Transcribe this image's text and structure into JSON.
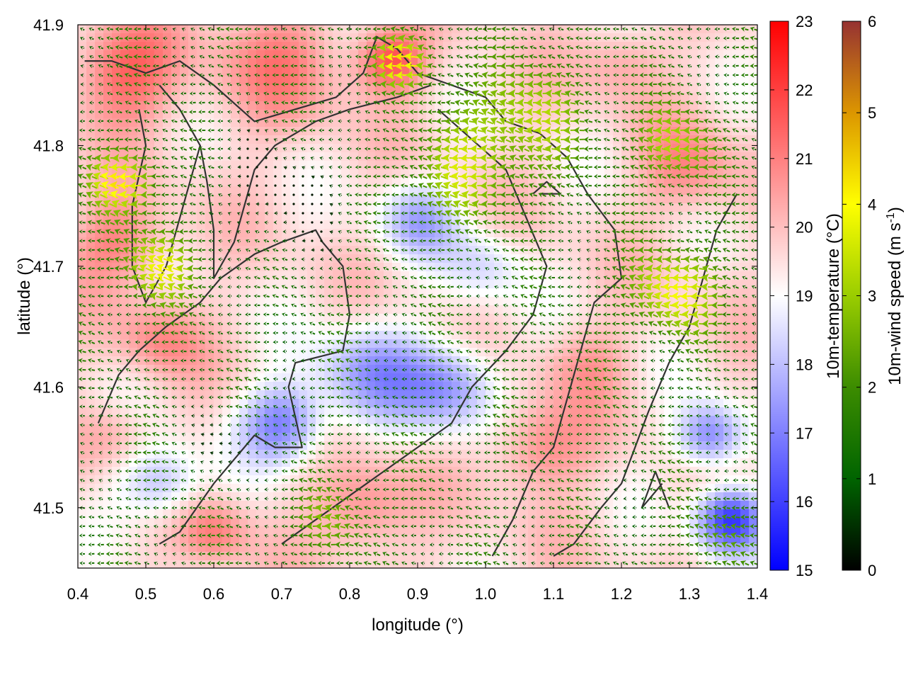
{
  "chart_data": {
    "type": "heatmap",
    "subtype": "temperature field with wind vector overlay",
    "xlabel": "longitude (°)",
    "ylabel": "latitude (°)",
    "xlim": [
      0.4,
      1.4
    ],
    "ylim": [
      41.45,
      41.9
    ],
    "x_ticks": [
      "0.4",
      "0.5",
      "0.6",
      "0.7",
      "0.8",
      "0.9",
      "1.0",
      "1.1",
      "1.2",
      "1.3",
      "1.4"
    ],
    "y_ticks": [
      "41.5",
      "41.6",
      "41.7",
      "41.8",
      "41.9"
    ],
    "grid": false,
    "temperature_colorbar": {
      "label": "10m-temperature (°C)",
      "range": [
        15,
        23
      ],
      "ticks": [
        "15",
        "16",
        "17",
        "18",
        "19",
        "20",
        "21",
        "22",
        "23"
      ],
      "colors": [
        "#0000ff",
        "#ffffff",
        "#ff0000"
      ]
    },
    "wind_colorbar": {
      "label_main": "10m-wind speed (m s",
      "label_sup": "-1",
      "label_end": ")",
      "range": [
        0,
        6
      ],
      "ticks": [
        "0",
        "1",
        "2",
        "3",
        "4",
        "5",
        "6"
      ],
      "colors": [
        "#000000",
        "#006400",
        "#3c8c00",
        "#9acd00",
        "#ffff00",
        "#dc9600",
        "#963232"
      ]
    },
    "temperature_anomalies": [
      {
        "lon": 0.47,
        "lat": 41.86,
        "value": 21.5,
        "radius": 0.08
      },
      {
        "lon": 0.46,
        "lat": 41.72,
        "value": 21.0,
        "radius": 0.07
      },
      {
        "lon": 0.52,
        "lat": 41.64,
        "value": 20.8,
        "radius": 0.06
      },
      {
        "lon": 0.7,
        "lat": 41.87,
        "value": 20.8,
        "radius": 0.1
      },
      {
        "lon": 0.86,
        "lat": 41.87,
        "value": 21.8,
        "radius": 0.05
      },
      {
        "lon": 1.2,
        "lat": 41.87,
        "value": 20.5,
        "radius": 0.06
      },
      {
        "lon": 1.3,
        "lat": 41.78,
        "value": 20.8,
        "radius": 0.07
      },
      {
        "lon": 1.15,
        "lat": 41.62,
        "value": 20.5,
        "radius": 0.06
      },
      {
        "lon": 1.08,
        "lat": 41.55,
        "value": 21.0,
        "radius": 0.07
      },
      {
        "lon": 0.6,
        "lat": 41.48,
        "value": 21.0,
        "radius": 0.05
      },
      {
        "lon": 0.82,
        "lat": 41.5,
        "value": 21.0,
        "radius": 0.07
      },
      {
        "lon": 0.45,
        "lat": 41.56,
        "value": 20.5,
        "radius": 0.05
      },
      {
        "lon": 0.9,
        "lat": 41.74,
        "value": 17.8,
        "radius": 0.06
      },
      {
        "lon": 0.83,
        "lat": 41.61,
        "value": 17.5,
        "radius": 0.08
      },
      {
        "lon": 0.7,
        "lat": 41.57,
        "value": 17.0,
        "radius": 0.06
      },
      {
        "lon": 0.52,
        "lat": 41.52,
        "value": 17.8,
        "radius": 0.06
      },
      {
        "lon": 0.95,
        "lat": 41.6,
        "value": 17.5,
        "radius": 0.07
      },
      {
        "lon": 1.36,
        "lat": 41.49,
        "value": 15.8,
        "radius": 0.05
      },
      {
        "lon": 1.33,
        "lat": 41.56,
        "value": 17.0,
        "radius": 0.05
      },
      {
        "lon": 1.0,
        "lat": 41.7,
        "value": 18.5,
        "radius": 0.06
      }
    ],
    "contour_lines": [
      [
        [
          0.43,
          41.57
        ],
        [
          0.46,
          41.61
        ],
        [
          0.49,
          41.63
        ],
        [
          0.53,
          41.65
        ],
        [
          0.58,
          41.67
        ],
        [
          0.61,
          41.69
        ],
        [
          0.66,
          41.71
        ],
        [
          0.7,
          41.72
        ],
        [
          0.75,
          41.73
        ],
        [
          0.76,
          41.72
        ],
        [
          0.79,
          41.7
        ],
        [
          0.8,
          41.66
        ],
        [
          0.79,
          41.63
        ],
        [
          0.72,
          41.62
        ],
        [
          0.71,
          41.6
        ],
        [
          0.73,
          41.55
        ],
        [
          0.69,
          41.55
        ],
        [
          0.66,
          41.56
        ],
        [
          0.6,
          41.52
        ],
        [
          0.55,
          41.48
        ],
        [
          0.52,
          41.47
        ]
      ],
      [
        [
          0.41,
          41.87
        ],
        [
          0.45,
          41.87
        ],
        [
          0.5,
          41.86
        ],
        [
          0.55,
          41.87
        ],
        [
          0.6,
          41.85
        ],
        [
          0.66,
          41.82
        ],
        [
          0.72,
          41.83
        ],
        [
          0.78,
          41.84
        ],
        [
          0.82,
          41.86
        ],
        [
          0.84,
          41.89
        ],
        [
          0.87,
          41.88
        ],
        [
          0.9,
          41.86
        ],
        [
          0.95,
          41.85
        ],
        [
          1.0,
          41.84
        ],
        [
          1.03,
          41.82
        ],
        [
          1.08,
          41.81
        ],
        [
          1.12,
          41.79
        ],
        [
          1.15,
          41.76
        ],
        [
          1.19,
          41.73
        ],
        [
          1.2,
          41.69
        ],
        [
          1.16,
          41.67
        ],
        [
          1.14,
          41.63
        ],
        [
          1.12,
          41.59
        ],
        [
          1.1,
          41.55
        ],
        [
          1.07,
          41.53
        ],
        [
          1.04,
          41.49
        ],
        [
          1.01,
          41.46
        ]
      ],
      [
        [
          0.58,
          41.8
        ],
        [
          0.59,
          41.77
        ],
        [
          0.6,
          41.73
        ],
        [
          0.6,
          41.69
        ],
        [
          0.63,
          41.72
        ],
        [
          0.66,
          41.78
        ],
        [
          0.69,
          41.8
        ],
        [
          0.75,
          41.82
        ],
        [
          0.8,
          41.83
        ],
        [
          0.87,
          41.84
        ],
        [
          0.92,
          41.85
        ]
      ],
      [
        [
          0.93,
          41.83
        ],
        [
          0.97,
          41.81
        ],
        [
          1.03,
          41.78
        ],
        [
          1.06,
          41.74
        ],
        [
          1.09,
          41.7
        ],
        [
          1.07,
          41.66
        ],
        [
          1.03,
          41.63
        ],
        [
          0.98,
          41.6
        ],
        [
          0.95,
          41.57
        ],
        [
          0.9,
          41.55
        ],
        [
          0.85,
          41.53
        ],
        [
          0.8,
          41.51
        ],
        [
          0.75,
          41.49
        ],
        [
          0.7,
          41.47
        ]
      ],
      [
        [
          1.37,
          41.76
        ],
        [
          1.34,
          41.73
        ],
        [
          1.32,
          41.69
        ],
        [
          1.3,
          41.65
        ],
        [
          1.27,
          41.62
        ],
        [
          1.24,
          41.58
        ],
        [
          1.22,
          41.55
        ],
        [
          1.2,
          41.52
        ],
        [
          1.17,
          41.5
        ],
        [
          1.13,
          41.47
        ],
        [
          1.1,
          41.46
        ]
      ],
      [
        [
          0.49,
          41.83
        ],
        [
          0.5,
          41.8
        ],
        [
          0.48,
          41.75
        ],
        [
          0.48,
          41.7
        ],
        [
          0.5,
          41.67
        ],
        [
          0.53,
          41.7
        ],
        [
          0.56,
          41.76
        ],
        [
          0.58,
          41.8
        ],
        [
          0.55,
          41.83
        ],
        [
          0.52,
          41.85
        ]
      ],
      [
        [
          1.26,
          41.52
        ],
        [
          1.23,
          41.5
        ],
        [
          1.25,
          41.53
        ],
        [
          1.27,
          41.5
        ]
      ],
      [
        [
          1.08,
          41.76
        ],
        [
          1.11,
          41.76
        ],
        [
          1.09,
          41.77
        ],
        [
          1.07,
          41.76
        ]
      ]
    ],
    "wind_field": {
      "direction": "mostly from the east (vectors pointing west)",
      "zones": [
        {
          "lon": 0.47,
          "lat": 41.77,
          "speed": 4.2,
          "radius": 0.05
        },
        {
          "lon": 0.52,
          "lat": 41.7,
          "speed": 3.6,
          "radius": 0.06
        },
        {
          "lon": 0.88,
          "lat": 41.87,
          "speed": 4.0,
          "radius": 0.04
        },
        {
          "lon": 1.05,
          "lat": 41.82,
          "speed": 3.2,
          "radius": 0.1
        },
        {
          "lon": 0.95,
          "lat": 41.77,
          "speed": 2.8,
          "radius": 0.08
        },
        {
          "lon": 1.28,
          "lat": 41.68,
          "speed": 3.8,
          "radius": 0.07
        },
        {
          "lon": 1.28,
          "lat": 41.8,
          "speed": 3.2,
          "radius": 0.06
        },
        {
          "lon": 0.78,
          "lat": 41.49,
          "speed": 2.5,
          "radius": 0.06
        },
        {
          "lon": 1.34,
          "lat": 41.48,
          "speed": 2.2,
          "radius": 0.06
        },
        {
          "lon": 0.7,
          "lat": 41.76,
          "speed": 0.3,
          "radius": 0.1
        },
        {
          "lon": 0.63,
          "lat": 41.55,
          "speed": 0.5,
          "radius": 0.06
        }
      ]
    }
  }
}
